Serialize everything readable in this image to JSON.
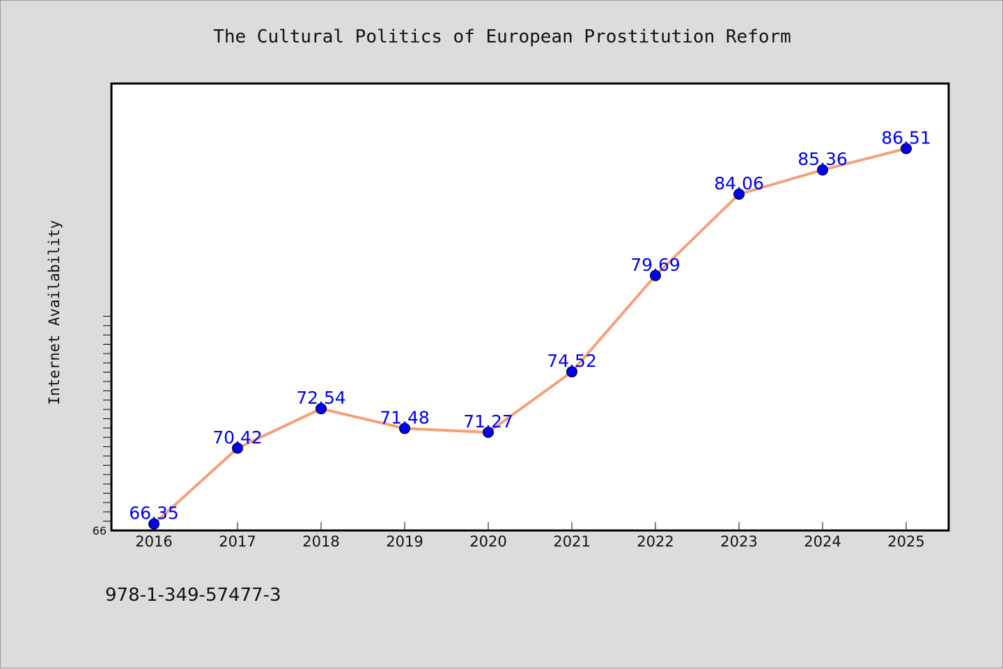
{
  "chart_data": {
    "type": "line",
    "title": "The Cultural Politics of European Prostitution Reform",
    "xlabel": "",
    "ylabel": "Internet Availability",
    "categories": [
      "2016",
      "2017",
      "2018",
      "2019",
      "2020",
      "2021",
      "2022",
      "2023",
      "2024",
      "2025"
    ],
    "values": [
      66.35,
      70.42,
      72.54,
      71.48,
      71.27,
      74.52,
      79.69,
      84.06,
      85.36,
      86.51
    ],
    "value_labels": [
      "66.35",
      "70.42",
      "72.54",
      "71.48",
      "71.27",
      "74.52",
      "79.69",
      "84.06",
      "85.36",
      "86.51"
    ],
    "ylim": [
      66,
      90
    ],
    "ytick_labels": [
      "66"
    ],
    "grid": false,
    "legend": "none",
    "colors": {
      "line": "#f4a07a",
      "marker": "#0000ee",
      "label": "#0000ee",
      "plot_background": "#ffffff",
      "figure_background": "#dcdcdc"
    }
  },
  "footer": {
    "isbn": "978-1-349-57477-3"
  }
}
